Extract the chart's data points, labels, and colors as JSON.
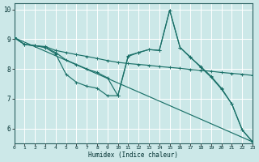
{
  "xlabel": "Humidex (Indice chaleur)",
  "bg_color": "#cce8e8",
  "grid_color": "#ffffff",
  "line_color": "#1a7068",
  "xlim": [
    0,
    23
  ],
  "ylim": [
    5.5,
    10.2
  ],
  "xticks": [
    0,
    1,
    2,
    3,
    4,
    5,
    6,
    7,
    8,
    9,
    10,
    11,
    12,
    13,
    14,
    15,
    16,
    17,
    18,
    19,
    20,
    21,
    22,
    23
  ],
  "yticks": [
    6,
    7,
    8,
    9,
    10
  ],
  "lines": [
    {
      "x": [
        0,
        1,
        2,
        3,
        4,
        5,
        6,
        7,
        8,
        9,
        10,
        11,
        12,
        13,
        14,
        15,
        16,
        17,
        18,
        19,
        20,
        21,
        22,
        23
      ],
      "y": [
        9.05,
        8.82,
        8.78,
        8.72,
        8.5,
        7.82,
        7.55,
        7.42,
        7.35,
        7.1,
        7.1,
        8.45,
        8.55,
        8.65,
        8.62,
        9.97,
        8.72,
        8.4,
        8.05,
        7.72,
        7.32,
        6.82,
        5.95,
        5.55
      ]
    },
    {
      "x": [
        0,
        1,
        2,
        3,
        4,
        5,
        6,
        7,
        8,
        9,
        10,
        11,
        12,
        13,
        14,
        15,
        16,
        17,
        18,
        19,
        20,
        21,
        22,
        23
      ],
      "y": [
        9.05,
        8.82,
        8.78,
        8.75,
        8.62,
        8.55,
        8.48,
        8.42,
        8.35,
        8.28,
        8.22,
        8.18,
        8.15,
        8.12,
        8.08,
        8.05,
        8.02,
        7.98,
        7.95,
        7.92,
        7.88,
        7.85,
        7.82,
        7.78
      ]
    },
    {
      "x": [
        0,
        1,
        2,
        3,
        4,
        5,
        6,
        7,
        8,
        9,
        10,
        11,
        12,
        13,
        14,
        15,
        16,
        17,
        18,
        19,
        20,
        21,
        22,
        23
      ],
      "y": [
        9.05,
        8.82,
        8.78,
        8.72,
        8.55,
        8.3,
        8.15,
        8.0,
        7.88,
        7.7,
        7.1,
        8.42,
        8.55,
        8.65,
        8.62,
        9.97,
        8.72,
        8.38,
        8.08,
        7.75,
        7.35,
        6.82,
        5.95,
        5.55
      ]
    },
    {
      "x": [
        0,
        23
      ],
      "y": [
        9.05,
        5.55
      ]
    }
  ]
}
